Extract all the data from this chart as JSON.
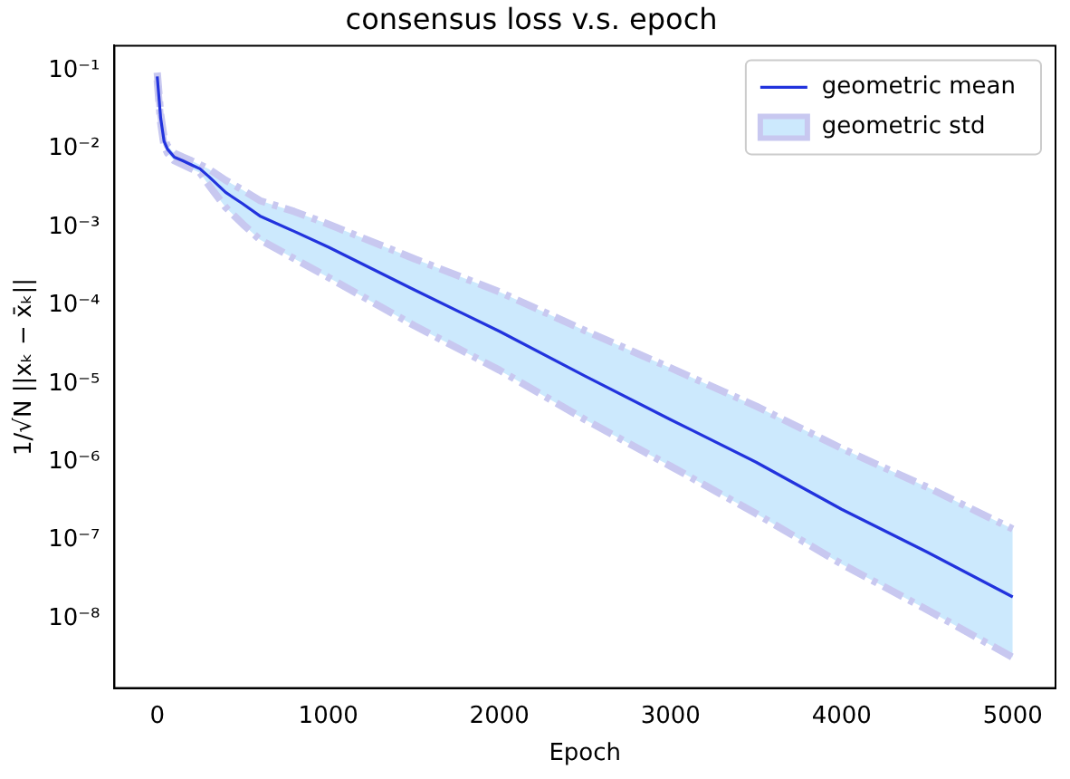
{
  "chart_data": {
    "type": "line",
    "title": "consensus loss v.s. epoch",
    "xlabel": "Epoch",
    "ylabel": "1/√N ||xₖ − x̄ₖ||",
    "x": [
      0,
      20,
      40,
      60,
      100,
      150,
      200,
      250,
      300,
      400,
      500,
      600,
      800,
      1000,
      1500,
      2000,
      2500,
      3000,
      3500,
      4000,
      4500,
      5000
    ],
    "series": [
      {
        "name": "geometric mean",
        "type": "line",
        "color": "#2233dd",
        "values": [
          0.085,
          0.025,
          0.0126,
          0.01,
          0.0079,
          0.0071,
          0.0063,
          0.0056,
          0.0045,
          0.0028,
          0.002,
          0.0014,
          0.00089,
          0.00056,
          0.00016,
          4.7e-05,
          1.26e-05,
          3.5e-06,
          1e-06,
          2.5e-07,
          7.1e-08,
          1.9e-08
        ],
        "lower": [
          0.076,
          0.022,
          0.011,
          0.0089,
          0.0071,
          0.0063,
          0.0056,
          0.005,
          0.0035,
          0.0018,
          0.0011,
          0.0007,
          0.0004,
          0.00023,
          5.6e-05,
          1.5e-05,
          3.5e-06,
          8.9e-07,
          2.2e-07,
          5e-08,
          1.3e-08,
          3.2e-09
        ],
        "upper": [
          0.095,
          0.028,
          0.014,
          0.011,
          0.0089,
          0.0079,
          0.0071,
          0.0063,
          0.0056,
          0.004,
          0.003,
          0.0022,
          0.0016,
          0.0011,
          0.0004,
          0.00015,
          4.8e-05,
          1.6e-05,
          5.2e-06,
          1.5e-06,
          4.8e-07,
          1.4e-07
        ]
      },
      {
        "name": "geometric std",
        "type": "line",
        "color": "#c8c8f0",
        "line_style": "dashed",
        "values": [
          0.095,
          0.028,
          0.014,
          0.011,
          0.0089,
          0.0079,
          0.0071,
          0.0063,
          0.0056,
          0.004,
          0.003,
          0.0022,
          0.0016,
          0.0011,
          0.0004,
          0.00015,
          4.8e-05,
          1.6e-05,
          5.2e-06,
          1.5e-06,
          4.8e-07,
          1.4e-07
        ]
      },
      {
        "type": "line",
        "color": "#c8c8f0",
        "line_style": "dashed",
        "values": [
          0.076,
          0.022,
          0.011,
          0.0089,
          0.0071,
          0.0063,
          0.0056,
          0.005,
          0.0035,
          0.0018,
          0.0011,
          0.0007,
          0.0004,
          0.00023,
          5.6e-05,
          1.5e-05,
          3.5e-06,
          8.9e-07,
          2.2e-07,
          5e-08,
          1.3e-08,
          3.2e-09
        ]
      }
    ],
    "log": "y",
    "xlim": [
      -250,
      5250
    ],
    "ylim": [
      1.3e-09,
      0.21
    ],
    "xticks": [
      0,
      1000,
      2000,
      3000,
      4000,
      5000
    ],
    "yticks": [
      {
        "value": 0.1,
        "label": "10⁻¹"
      },
      {
        "value": 0.01,
        "label": "10⁻²"
      },
      {
        "value": 0.001,
        "label": "10⁻³"
      },
      {
        "value": 0.0001,
        "label": "10⁻⁴"
      },
      {
        "value": 1e-05,
        "label": "10⁻⁵"
      },
      {
        "value": 1e-06,
        "label": "10⁻⁶"
      },
      {
        "value": 1e-07,
        "label": "10⁻⁷"
      },
      {
        "value": 1e-08,
        "label": "10⁻⁸"
      }
    ],
    "grid": false,
    "legend": "top right",
    "marker": "none",
    "line_style": "solid"
  }
}
